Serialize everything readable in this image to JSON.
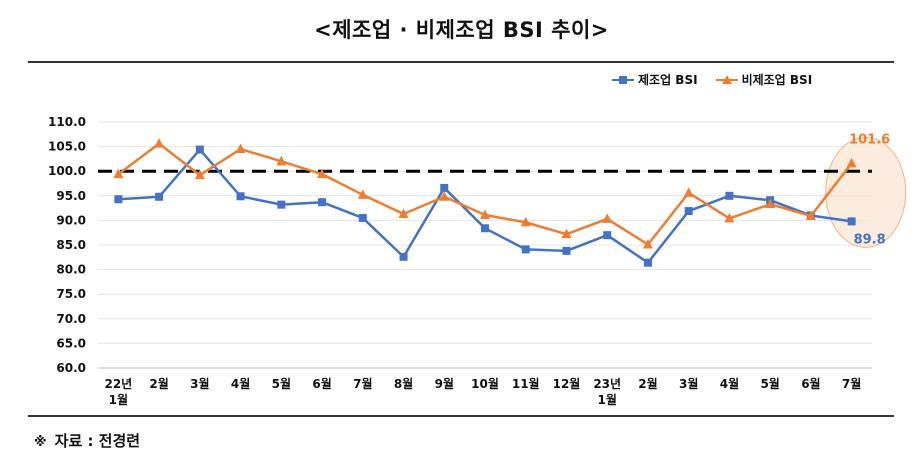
{
  "title": "<제조업 · 비제조업 BSI 추이>",
  "source_mark": "※",
  "source": "자료 : 전경련",
  "colors": {
    "manufacturing": "#4472C4",
    "non_manufacturing": "#ED7D31",
    "reference": "#000000",
    "highlight_fill": "#FBE5D6",
    "highlight_stroke": "#F4B183"
  },
  "chart_data": {
    "type": "line",
    "categories": [
      "22년\n1월",
      "2월",
      "3월",
      "4월",
      "5월",
      "6월",
      "7월",
      "8월",
      "9월",
      "10월",
      "11월",
      "12월",
      "23년\n1월",
      "2월",
      "3월",
      "4월",
      "5월",
      "6월",
      "7월"
    ],
    "series": [
      {
        "name": "제조업 BSI",
        "color": "#4472C4",
        "marker": "square",
        "values": [
          94.3,
          94.8,
          104.4,
          94.9,
          93.2,
          93.7,
          90.5,
          82.6,
          96.6,
          88.4,
          84.1,
          83.8,
          87.0,
          81.4,
          91.9,
          95.0,
          94.1,
          91.0,
          89.8
        ]
      },
      {
        "name": "비제조업 BSI",
        "color": "#ED7D31",
        "marker": "triangle",
        "values": [
          99.4,
          105.6,
          99.2,
          104.5,
          102.0,
          99.4,
          95.2,
          91.3,
          94.8,
          91.1,
          89.6,
          87.2,
          90.3,
          85.1,
          95.6,
          90.4,
          93.3,
          90.9,
          101.6
        ]
      }
    ],
    "ylim": [
      60.0,
      110.0
    ],
    "yticks": [
      "60.0",
      "65.0",
      "70.0",
      "75.0",
      "80.0",
      "85.0",
      "90.0",
      "95.0",
      "100.0",
      "105.0",
      "110.0"
    ],
    "reference_line": 100.0,
    "data_labels": [
      {
        "series": "비제조업 BSI",
        "index": 18,
        "text": "101.6"
      },
      {
        "series": "제조업 BSI",
        "index": 18,
        "text": "89.8"
      }
    ],
    "legend_position": "top-right",
    "grid": true
  }
}
